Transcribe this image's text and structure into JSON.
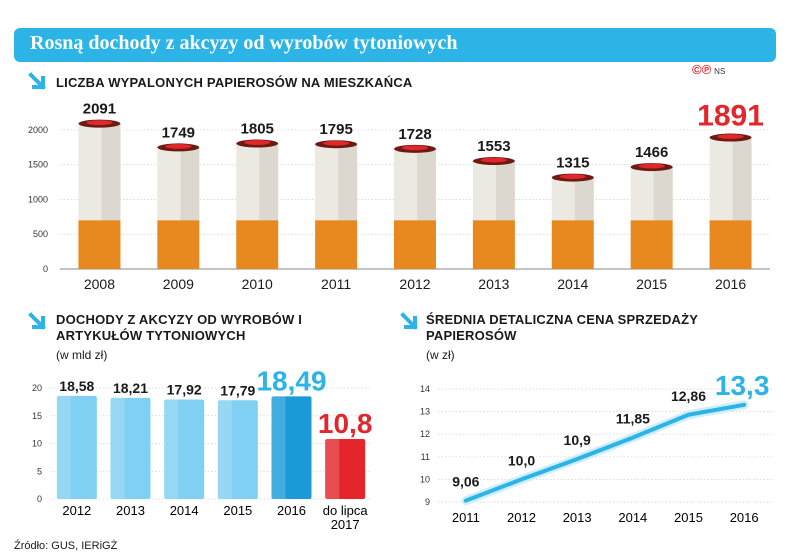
{
  "title": "Rosną dochody z akcyzy od wyrobów tytoniowych",
  "credit": {
    "logo": "©℗",
    "tag": "NS"
  },
  "source": "Źródło: GUS, IERiGŻ",
  "colors": {
    "accent": "#2cb4e6",
    "highlight": "#e3262b",
    "filter": "#e8891f",
    "paper": "#ece9e2"
  },
  "icons": [
    "arrow-down-right-icon"
  ],
  "chart_data": [
    {
      "type": "bar",
      "title": "Liczba wypalonych papierosów na mieszkańca",
      "categories": [
        "2008",
        "2009",
        "2010",
        "2011",
        "2012",
        "2013",
        "2014",
        "2015",
        "2016"
      ],
      "values": [
        2091,
        1749,
        1805,
        1795,
        1728,
        1553,
        1315,
        1466,
        1891
      ],
      "value_labels": [
        "2091",
        "1749",
        "1805",
        "1795",
        "1728",
        "1553",
        "1315",
        "1466",
        "1891"
      ],
      "ylim": [
        0,
        2100
      ],
      "yticks": [
        0,
        500,
        1000,
        1500,
        2000
      ],
      "highlight_index": 8,
      "grid": true
    },
    {
      "type": "bar",
      "title": "Dochody z akcyzy od wyrobów i artykułów tytoniowych",
      "unit": "(w mld zł)",
      "categories": [
        "2012",
        "2013",
        "2014",
        "2015",
        "2016",
        "do lipca 2017"
      ],
      "values": [
        18.58,
        18.21,
        17.92,
        17.79,
        18.49,
        10.8
      ],
      "value_labels": [
        "18,58",
        "18,21",
        "17,92",
        "17,79",
        "18,49",
        "10,8"
      ],
      "ylim": [
        0,
        20
      ],
      "yticks": [
        0,
        5,
        10,
        15,
        20
      ],
      "grid": true
    },
    {
      "type": "line",
      "title": "Średnia detaliczna cena sprzedaży papierosów",
      "unit": "(w zł)",
      "x": [
        "2011",
        "2012",
        "2013",
        "2014",
        "2015",
        "2016"
      ],
      "values": [
        9.06,
        10.0,
        10.9,
        11.85,
        12.86,
        13.3
      ],
      "value_labels": [
        "9,06",
        "10,0",
        "10,9",
        "11,85",
        "12,86",
        "13,3"
      ],
      "ylim": [
        9,
        14
      ],
      "yticks": [
        9,
        10,
        11,
        12,
        13,
        14
      ],
      "grid": true
    }
  ]
}
